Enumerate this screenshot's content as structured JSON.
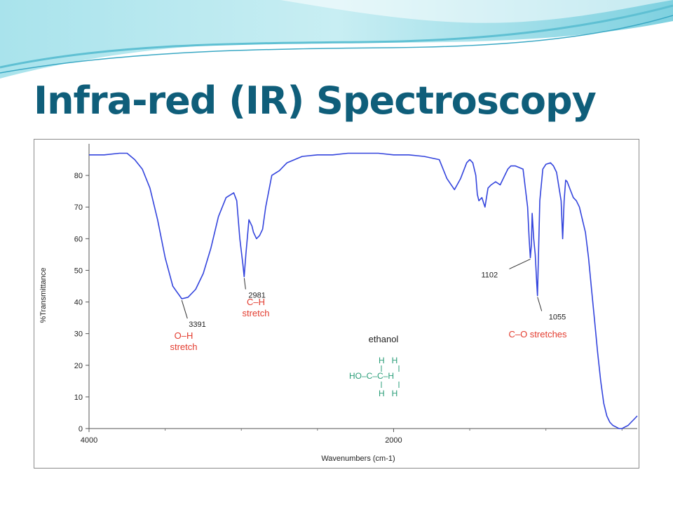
{
  "slide": {
    "title": "Infra-red (IR) Spectroscopy",
    "colors": {
      "title": "#0f5e7a",
      "spectrum": "#3344dd",
      "annotation": "#e33b2e",
      "structure": "#2a9d78"
    }
  },
  "chart_data": {
    "type": "line",
    "title": "",
    "xlabel": "Wavenumbers (cm-1)",
    "ylabel": "%Transmittance",
    "xlim": [
      4000,
      400
    ],
    "ylim": [
      0,
      90
    ],
    "x_reversed": true,
    "x_ticks": [
      4000,
      2000
    ],
    "y_ticks": [
      0,
      10,
      20,
      30,
      40,
      50,
      60,
      70,
      80
    ],
    "grid": false,
    "series": [
      {
        "x": [
          4000,
          3900,
          3800,
          3750,
          3700,
          3650,
          3600,
          3550,
          3500,
          3450,
          3391,
          3350,
          3300,
          3250,
          3200,
          3150,
          3100,
          3050,
          3030,
          3010,
          2990,
          2981,
          2970,
          2950,
          2930,
          2920,
          2900,
          2880,
          2860,
          2840,
          2800,
          2750,
          2700,
          2600,
          2500,
          2400,
          2300,
          2200,
          2100,
          2000,
          1900,
          1800,
          1700,
          1650,
          1600,
          1560,
          1520,
          1500,
          1480,
          1460,
          1450,
          1440,
          1420,
          1400,
          1380,
          1360,
          1330,
          1300,
          1270,
          1250,
          1230,
          1200,
          1150,
          1120,
          1110,
          1102,
          1095,
          1090,
          1080,
          1070,
          1060,
          1055,
          1050,
          1040,
          1020,
          1000,
          970,
          950,
          930,
          900,
          890,
          880,
          870,
          860,
          840,
          820,
          800,
          780,
          760,
          740,
          720,
          700,
          680,
          660,
          640,
          620,
          600,
          580,
          560,
          540,
          520,
          500,
          480,
          460,
          440,
          420,
          400
        ],
        "y": [
          86.5,
          86.5,
          87,
          87,
          85,
          82,
          76,
          66,
          54,
          45,
          41,
          41.5,
          44,
          49,
          57,
          67,
          73,
          74.5,
          72,
          60,
          52,
          48,
          55,
          66,
          64,
          62,
          60,
          61,
          63,
          70,
          80,
          81.5,
          84,
          86,
          86.5,
          86.5,
          87,
          87,
          87,
          86.5,
          86.5,
          86,
          85,
          79,
          75.5,
          79,
          84,
          85,
          84,
          80,
          74,
          72,
          73,
          70,
          76,
          77,
          78,
          77,
          80,
          82,
          83,
          83,
          82,
          70,
          60,
          54,
          58,
          68,
          60,
          55,
          46,
          42,
          52,
          72,
          82,
          83.5,
          84,
          83,
          81,
          72,
          60,
          72,
          78.5,
          78,
          75.5,
          73,
          72,
          70,
          66,
          62,
          54,
          44,
          34,
          24,
          15,
          8,
          4,
          2,
          1,
          0.5,
          0,
          0,
          0.5,
          1,
          2,
          3,
          4
        ]
      }
    ],
    "annotations": {
      "peaks": [
        {
          "wavenumber": 3391,
          "label": "3391"
        },
        {
          "wavenumber": 2981,
          "label": "2981"
        },
        {
          "wavenumber": 1102,
          "label": "1102"
        },
        {
          "wavenumber": 1055,
          "label": "1055"
        }
      ],
      "assignments": [
        {
          "line1": "O–H",
          "line2": "stretch"
        },
        {
          "line1": "C–H",
          "line2": "stretch"
        },
        {
          "line1": "C–O stretches"
        }
      ],
      "compound_name": "ethanol",
      "structure": {
        "row_top": "H   H",
        "row_mid": "HO–C–C–H",
        "row_bottom": "H   H"
      }
    }
  }
}
